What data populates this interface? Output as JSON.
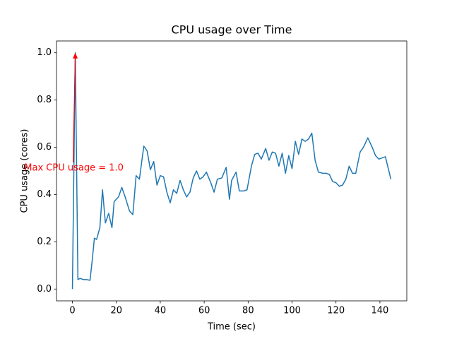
{
  "chart_data": {
    "type": "line",
    "title": "CPU usage over Time",
    "x_label": "Time (sec)",
    "y_label": "CPU usage (cores)",
    "x": [
      0,
      1.3,
      2.5,
      3.5,
      5,
      6.5,
      8,
      9,
      10,
      11,
      12.5,
      13.7,
      15,
      16.5,
      18,
      19,
      21,
      22.5,
      24,
      26,
      27.5,
      29,
      30.5,
      32.5,
      34,
      35.5,
      37,
      38.5,
      40,
      41.5,
      43,
      44.5,
      46,
      47.5,
      49,
      50.5,
      52,
      53.5,
      55,
      56.5,
      58,
      59.5,
      61,
      63,
      64.5,
      66,
      68,
      70,
      71.5,
      72.5,
      74.5,
      76,
      78,
      79.5,
      81.5,
      83,
      84.5,
      86,
      88,
      89.5,
      91,
      92.5,
      94,
      95.5,
      97,
      98.5,
      100,
      101.5,
      103,
      104.5,
      106,
      107.5,
      109,
      110.5,
      112,
      114,
      115.5,
      117,
      118.5,
      120,
      121.5,
      123,
      124.5,
      126,
      127.5,
      129,
      131,
      132.5,
      134.5,
      136.5,
      138,
      139.5,
      141,
      142.5,
      145
    ],
    "series": [
      {
        "color": "#1f77b4",
        "values": [
          0,
          1.0,
          0.04,
          0.045,
          0.04,
          0.04,
          0.037,
          0.12,
          0.215,
          0.21,
          0.26,
          0.42,
          0.28,
          0.32,
          0.26,
          0.37,
          0.39,
          0.43,
          0.39,
          0.33,
          0.315,
          0.48,
          0.465,
          0.605,
          0.585,
          0.505,
          0.54,
          0.44,
          0.48,
          0.475,
          0.41,
          0.365,
          0.42,
          0.405,
          0.46,
          0.42,
          0.39,
          0.41,
          0.47,
          0.5,
          0.465,
          0.475,
          0.495,
          0.45,
          0.41,
          0.465,
          0.47,
          0.515,
          0.38,
          0.46,
          0.495,
          0.415,
          0.415,
          0.42,
          0.52,
          0.57,
          0.575,
          0.55,
          0.595,
          0.545,
          0.58,
          0.575,
          0.52,
          0.575,
          0.49,
          0.565,
          0.51,
          0.625,
          0.57,
          0.635,
          0.625,
          0.635,
          0.66,
          0.545,
          0.495,
          0.49,
          0.49,
          0.485,
          0.455,
          0.45,
          0.435,
          0.44,
          0.465,
          0.52,
          0.49,
          0.49,
          0.58,
          0.6,
          0.64,
          0.6,
          0.565,
          0.55,
          0.555,
          0.56,
          0.465
        ]
      }
    ],
    "xlim": [
      -7.25,
      152.25
    ],
    "xticks": [
      0,
      20,
      40,
      60,
      80,
      100,
      120,
      140
    ],
    "ylim": [
      -0.05,
      1.05
    ],
    "yticks": [
      {
        "value": 0,
        "label": "0.0"
      },
      0.2,
      0.4,
      0.6,
      0.8,
      {
        "value": 1,
        "label": "1.0"
      }
    ],
    "annotations": [
      {
        "text": "Max CPU usage = 1.0",
        "xy": [
          1.3,
          1.0
        ],
        "color": "red"
      }
    ]
  }
}
